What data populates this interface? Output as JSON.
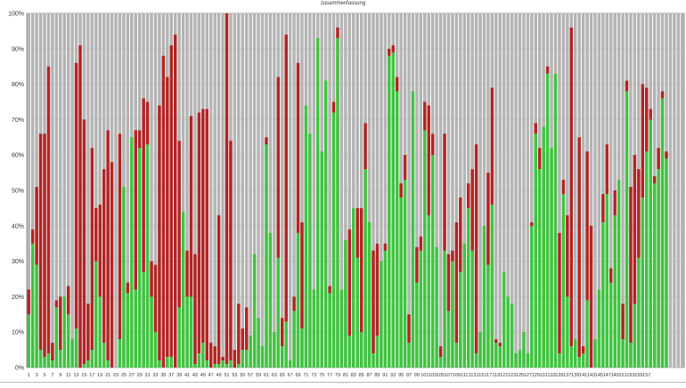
{
  "chart_data": {
    "type": "bar",
    "stacked": true,
    "title": "zusammenfassung",
    "xlabel": "",
    "ylabel": "",
    "ylim": [
      0,
      100
    ],
    "y_ticks": [
      "0%",
      "10%",
      "20%",
      "30%",
      "40%",
      "50%",
      "60%",
      "70%",
      "80%",
      "90%",
      "100%"
    ],
    "grid": true,
    "legend": "none",
    "colors": {
      "green": "#3fc43f",
      "red": "#b22424",
      "gray": "#b4b4b4"
    },
    "x_tick_labels": [
      "1",
      "3",
      "5",
      "7",
      "9",
      "11",
      "13",
      "15",
      "17",
      "19",
      "21",
      "23",
      "25",
      "27",
      "29",
      "31",
      "33",
      "35",
      "37",
      "39",
      "41",
      "43",
      "45",
      "47",
      "49",
      "51",
      "53",
      "55",
      "57",
      "59",
      "61",
      "63",
      "65",
      "67",
      "69",
      "71",
      "73",
      "75",
      "77",
      "79",
      "81",
      "83",
      "85",
      "87",
      "89",
      "91",
      "93",
      "95",
      "97",
      "99",
      "101",
      "103",
      "105",
      "107",
      "109",
      "111",
      "113",
      "115",
      "117",
      "119",
      "121",
      "123",
      "125",
      "127",
      "129",
      "131",
      "133",
      "135",
      "137",
      "139",
      "141",
      "143",
      "145",
      "147",
      "149",
      "151",
      "153",
      "155",
      "157"
    ],
    "series": [
      {
        "color": "green",
        "values": [
          15,
          35,
          29,
          5,
          3,
          4,
          2,
          17,
          5,
          20,
          15,
          8,
          11,
          0,
          1,
          2,
          5,
          30,
          20,
          7,
          2,
          0,
          0,
          8,
          51,
          21,
          65,
          22,
          62,
          27,
          63,
          20,
          10,
          2,
          0,
          3,
          3,
          0,
          17,
          44,
          20,
          20,
          1,
          4,
          7,
          2,
          0,
          1,
          1,
          2,
          1,
          2,
          0,
          1,
          5,
          5,
          9,
          32,
          14,
          6,
          63,
          38,
          10,
          31,
          6,
          13,
          2,
          16,
          38,
          11,
          74,
          66,
          22,
          93,
          61,
          81,
          21,
          72,
          93,
          22,
          36,
          9,
          45,
          31,
          10,
          56,
          41,
          4,
          9,
          30,
          33,
          88,
          89,
          78,
          48,
          53,
          7,
          78,
          24,
          33,
          67,
          43,
          60,
          34,
          3,
          33,
          16,
          30,
          7,
          27,
          35,
          45,
          33,
          4,
          10,
          40,
          29,
          46,
          7,
          6,
          27,
          20,
          18,
          4,
          5,
          10,
          4,
          40,
          66,
          56,
          68,
          83,
          62,
          83,
          4,
          49,
          20,
          6,
          8,
          3,
          4,
          19,
          0,
          8,
          22,
          41,
          49,
          24,
          43,
          53,
          8,
          78,
          7,
          18,
          31,
          48,
          61,
          70,
          52,
          56,
          76,
          59,
          0,
          0,
          0,
          0
        ]
      },
      {
        "color": "red",
        "values": [
          7,
          4,
          22,
          61,
          63,
          81,
          5,
          2,
          15,
          0,
          8,
          0,
          75,
          91,
          69,
          16,
          57,
          15,
          26,
          49,
          65,
          58,
          0,
          58,
          0,
          3,
          0,
          45,
          5,
          49,
          12,
          10,
          19,
          72,
          88,
          79,
          88,
          94,
          47,
          0,
          13,
          51,
          31,
          68,
          66,
          71,
          7,
          5,
          42,
          1,
          99,
          62,
          5,
          17,
          6,
          12,
          0,
          0,
          0,
          0,
          2,
          0,
          0,
          51,
          8,
          81,
          0,
          4,
          48,
          30,
          0,
          0,
          0,
          0,
          0,
          0,
          2,
          3,
          3,
          0,
          0,
          30,
          0,
          14,
          35,
          13,
          0,
          29,
          26,
          0,
          2,
          2,
          2,
          4,
          4,
          7,
          8,
          0,
          10,
          4,
          8,
          31,
          6,
          0,
          3,
          33,
          16,
          3,
          34,
          21,
          0,
          7,
          23,
          59,
          0,
          0,
          26,
          33,
          1,
          1,
          0,
          0,
          0,
          0,
          0,
          0,
          0,
          1,
          3,
          6,
          0,
          2,
          0,
          0,
          34,
          4,
          23,
          90,
          0,
          62,
          2,
          42,
          40,
          0,
          0,
          8,
          14,
          4,
          7,
          0,
          10,
          3,
          44,
          42,
          25,
          32,
          18,
          3,
          2,
          6,
          2,
          2,
          0,
          0,
          0,
          0
        ]
      }
    ]
  }
}
